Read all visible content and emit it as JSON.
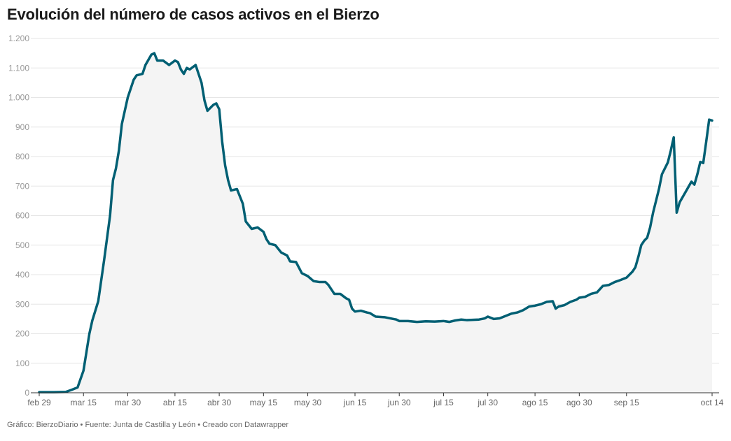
{
  "chart_data": {
    "type": "area",
    "title": "Evolución del número de casos activos en el Bierzo",
    "xlabel": "",
    "ylabel": "",
    "ylim": [
      0,
      1200
    ],
    "grid": true,
    "line_color": "#005f73",
    "area_color": "#f4f4f4",
    "y_ticks": [
      {
        "value": 0,
        "label": "0"
      },
      {
        "value": 100,
        "label": "100"
      },
      {
        "value": 200,
        "label": "200"
      },
      {
        "value": 300,
        "label": "300"
      },
      {
        "value": 400,
        "label": "400"
      },
      {
        "value": 500,
        "label": "500"
      },
      {
        "value": 600,
        "label": "600"
      },
      {
        "value": 700,
        "label": "700"
      },
      {
        "value": 800,
        "label": "800"
      },
      {
        "value": 900,
        "label": "900"
      },
      {
        "value": 1000,
        "label": "1.000"
      },
      {
        "value": 1100,
        "label": "1.100"
      },
      {
        "value": 1200,
        "label": "1.200"
      }
    ],
    "x_ticks": [
      {
        "date": "2020-02-29",
        "label": "feb 29"
      },
      {
        "date": "2020-03-15",
        "label": "mar 15"
      },
      {
        "date": "2020-03-30",
        "label": "mar 30"
      },
      {
        "date": "2020-04-15",
        "label": "abr 15"
      },
      {
        "date": "2020-04-30",
        "label": "abr 30"
      },
      {
        "date": "2020-05-15",
        "label": "may 15"
      },
      {
        "date": "2020-05-30",
        "label": "may 30"
      },
      {
        "date": "2020-06-15",
        "label": "jun 15"
      },
      {
        "date": "2020-06-30",
        "label": "jun 30"
      },
      {
        "date": "2020-07-15",
        "label": "jul 15"
      },
      {
        "date": "2020-07-30",
        "label": "jul 30"
      },
      {
        "date": "2020-08-15",
        "label": "ago 15"
      },
      {
        "date": "2020-08-30",
        "label": "ago 30"
      },
      {
        "date": "2020-09-15",
        "label": "sep 15"
      },
      {
        "date": "2020-10-14",
        "label": "oct 14"
      }
    ],
    "points": [
      [
        "2020-02-29",
        2
      ],
      [
        "2020-03-05",
        2
      ],
      [
        "2020-03-09",
        3
      ],
      [
        "2020-03-11",
        10
      ],
      [
        "2020-03-13",
        18
      ],
      [
        "2020-03-15",
        75
      ],
      [
        "2020-03-17",
        200
      ],
      [
        "2020-03-18",
        245
      ],
      [
        "2020-03-20",
        310
      ],
      [
        "2020-03-22",
        450
      ],
      [
        "2020-03-24",
        600
      ],
      [
        "2020-03-25",
        720
      ],
      [
        "2020-03-26",
        760
      ],
      [
        "2020-03-27",
        820
      ],
      [
        "2020-03-28",
        910
      ],
      [
        "2020-03-30",
        1000
      ],
      [
        "2020-04-01",
        1060
      ],
      [
        "2020-04-02",
        1075
      ],
      [
        "2020-04-04",
        1080
      ],
      [
        "2020-04-05",
        1110
      ],
      [
        "2020-04-07",
        1145
      ],
      [
        "2020-04-08",
        1150
      ],
      [
        "2020-04-09",
        1125
      ],
      [
        "2020-04-11",
        1125
      ],
      [
        "2020-04-13",
        1110
      ],
      [
        "2020-04-15",
        1125
      ],
      [
        "2020-04-16",
        1120
      ],
      [
        "2020-04-17",
        1095
      ],
      [
        "2020-04-18",
        1080
      ],
      [
        "2020-04-19",
        1100
      ],
      [
        "2020-04-20",
        1095
      ],
      [
        "2020-04-22",
        1110
      ],
      [
        "2020-04-24",
        1050
      ],
      [
        "2020-04-25",
        990
      ],
      [
        "2020-04-26",
        955
      ],
      [
        "2020-04-28",
        975
      ],
      [
        "2020-04-29",
        980
      ],
      [
        "2020-04-30",
        960
      ],
      [
        "2020-05-01",
        850
      ],
      [
        "2020-05-02",
        770
      ],
      [
        "2020-05-03",
        720
      ],
      [
        "2020-05-04",
        685
      ],
      [
        "2020-05-06",
        690
      ],
      [
        "2020-05-08",
        640
      ],
      [
        "2020-05-09",
        580
      ],
      [
        "2020-05-11",
        555
      ],
      [
        "2020-05-13",
        560
      ],
      [
        "2020-05-15",
        545
      ],
      [
        "2020-05-16",
        520
      ],
      [
        "2020-05-17",
        505
      ],
      [
        "2020-05-19",
        500
      ],
      [
        "2020-05-21",
        475
      ],
      [
        "2020-05-23",
        465
      ],
      [
        "2020-05-24",
        445
      ],
      [
        "2020-05-26",
        443
      ],
      [
        "2020-05-28",
        405
      ],
      [
        "2020-05-30",
        395
      ],
      [
        "2020-06-01",
        378
      ],
      [
        "2020-06-03",
        375
      ],
      [
        "2020-06-05",
        375
      ],
      [
        "2020-06-06",
        365
      ],
      [
        "2020-06-08",
        335
      ],
      [
        "2020-06-10",
        335
      ],
      [
        "2020-06-12",
        320
      ],
      [
        "2020-06-13",
        315
      ],
      [
        "2020-06-14",
        285
      ],
      [
        "2020-06-15",
        275
      ],
      [
        "2020-06-17",
        278
      ],
      [
        "2020-06-19",
        272
      ],
      [
        "2020-06-20",
        270
      ],
      [
        "2020-06-22",
        258
      ],
      [
        "2020-06-25",
        256
      ],
      [
        "2020-06-27",
        252
      ],
      [
        "2020-06-29",
        248
      ],
      [
        "2020-06-30",
        243
      ],
      [
        "2020-07-03",
        243
      ],
      [
        "2020-07-06",
        240
      ],
      [
        "2020-07-09",
        242
      ],
      [
        "2020-07-12",
        241
      ],
      [
        "2020-07-15",
        243
      ],
      [
        "2020-07-17",
        240
      ],
      [
        "2020-07-19",
        245
      ],
      [
        "2020-07-21",
        248
      ],
      [
        "2020-07-23",
        246
      ],
      [
        "2020-07-25",
        247
      ],
      [
        "2020-07-27",
        248
      ],
      [
        "2020-07-29",
        252
      ],
      [
        "2020-07-30",
        258
      ],
      [
        "2020-08-01",
        250
      ],
      [
        "2020-08-03",
        252
      ],
      [
        "2020-08-05",
        260
      ],
      [
        "2020-08-07",
        268
      ],
      [
        "2020-08-09",
        272
      ],
      [
        "2020-08-11",
        280
      ],
      [
        "2020-08-13",
        292
      ],
      [
        "2020-08-15",
        295
      ],
      [
        "2020-08-17",
        300
      ],
      [
        "2020-08-19",
        308
      ],
      [
        "2020-08-21",
        310
      ],
      [
        "2020-08-22",
        285
      ],
      [
        "2020-08-23",
        292
      ],
      [
        "2020-08-25",
        297
      ],
      [
        "2020-08-27",
        308
      ],
      [
        "2020-08-29",
        315
      ],
      [
        "2020-08-30",
        322
      ],
      [
        "2020-09-01",
        325
      ],
      [
        "2020-09-03",
        335
      ],
      [
        "2020-09-05",
        340
      ],
      [
        "2020-09-07",
        362
      ],
      [
        "2020-09-09",
        365
      ],
      [
        "2020-09-11",
        375
      ],
      [
        "2020-09-13",
        382
      ],
      [
        "2020-09-15",
        390
      ],
      [
        "2020-09-17",
        410
      ],
      [
        "2020-09-18",
        425
      ],
      [
        "2020-09-19",
        460
      ],
      [
        "2020-09-20",
        500
      ],
      [
        "2020-09-21",
        515
      ],
      [
        "2020-09-22",
        525
      ],
      [
        "2020-09-23",
        560
      ],
      [
        "2020-09-24",
        610
      ],
      [
        "2020-09-25",
        650
      ],
      [
        "2020-09-26",
        690
      ],
      [
        "2020-09-27",
        740
      ],
      [
        "2020-09-29",
        780
      ],
      [
        "2020-09-30",
        820
      ],
      [
        "2020-10-01",
        865
      ],
      [
        "2020-10-02",
        610
      ],
      [
        "2020-10-03",
        645
      ],
      [
        "2020-10-05",
        680
      ],
      [
        "2020-10-07",
        715
      ],
      [
        "2020-10-08",
        705
      ],
      [
        "2020-10-09",
        740
      ],
      [
        "2020-10-10",
        782
      ],
      [
        "2020-10-11",
        778
      ],
      [
        "2020-10-12",
        850
      ],
      [
        "2020-10-13",
        925
      ],
      [
        "2020-10-14",
        922
      ]
    ]
  },
  "footer": "Gráfico: BierzoDiario • Fuente: Junta de Castilla y León • Creado con Datawrapper"
}
